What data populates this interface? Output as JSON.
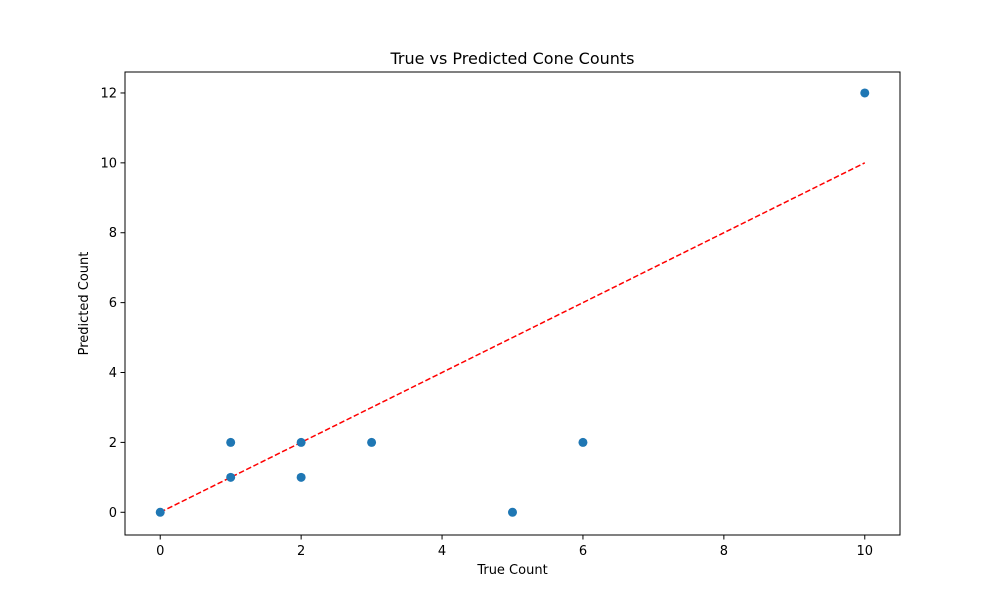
{
  "chart_data": {
    "type": "scatter",
    "title": "True vs Predicted Cone Counts",
    "xlabel": "True Count",
    "ylabel": "Predicted Count",
    "xlim": [
      -0.5,
      10.5
    ],
    "ylim": [
      -0.65,
      12.6
    ],
    "xticks": [
      0,
      2,
      4,
      6,
      8,
      10
    ],
    "yticks": [
      0,
      2,
      4,
      6,
      8,
      10,
      12
    ],
    "grid": false,
    "legend": "none",
    "series": [
      {
        "points": [
          {
            "x": 0,
            "y": 0
          },
          {
            "x": 1,
            "y": 1
          },
          {
            "x": 1,
            "y": 2
          },
          {
            "x": 2,
            "y": 1
          },
          {
            "x": 2,
            "y": 2
          },
          {
            "x": 3,
            "y": 2
          },
          {
            "x": 5,
            "y": 0
          },
          {
            "x": 6,
            "y": 2
          },
          {
            "x": 10,
            "y": 12
          }
        ],
        "color": "#1f77b4"
      }
    ],
    "reference_line": {
      "x": [
        0,
        10
      ],
      "y": [
        0,
        10
      ],
      "color": "#ff0000",
      "style": "dashed"
    }
  }
}
